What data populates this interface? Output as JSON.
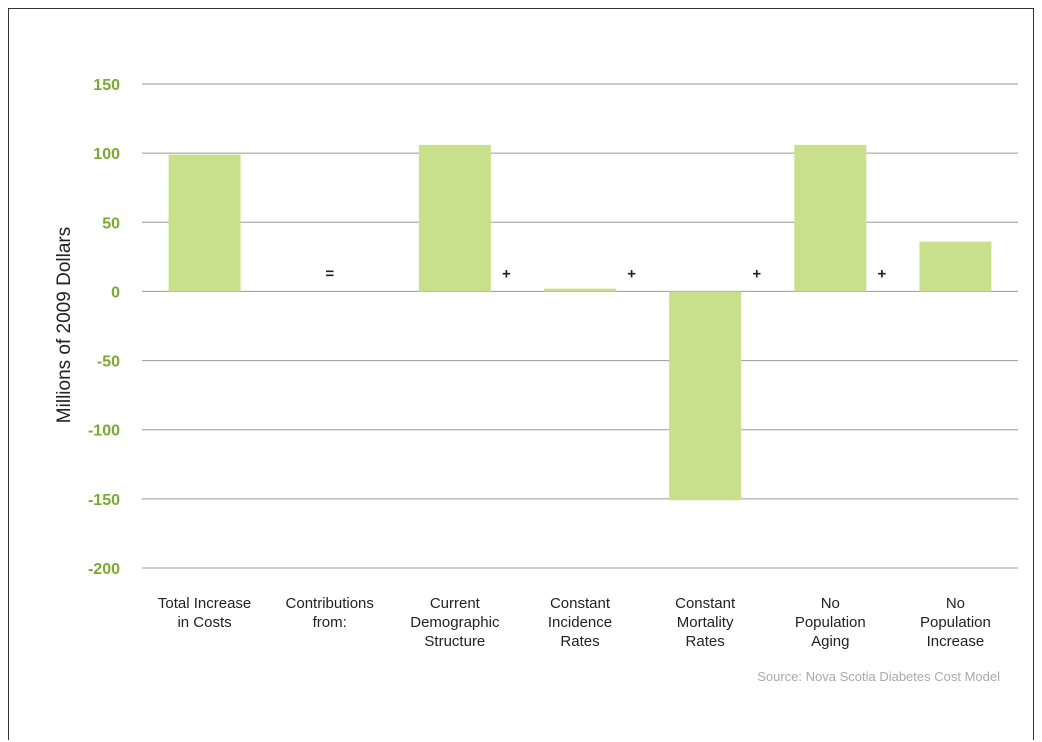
{
  "chart_data": {
    "type": "bar",
    "categories": [
      [
        "Total Increase",
        "in Costs"
      ],
      [
        "Contributions",
        "from:"
      ],
      [
        "Current",
        "Demographic",
        "Structure"
      ],
      [
        "Constant",
        "Incidence",
        "Rates"
      ],
      [
        "Constant",
        "Mortality",
        "Rates"
      ],
      [
        "No",
        "Population",
        "Aging"
      ],
      [
        "No",
        "Population",
        "Increase"
      ]
    ],
    "values": [
      99,
      null,
      106,
      2,
      -151,
      106,
      36
    ],
    "operators": [
      "=",
      "+",
      "+",
      "+",
      "+"
    ],
    "ylabel": "Millions of 2009 Dollars",
    "ylim": [
      -200,
      150
    ],
    "yticks": [
      150,
      100,
      50,
      0,
      -50,
      -100,
      -150,
      -200
    ],
    "grid": true,
    "bar_color": "#c8e08c",
    "tick_color": "#7aaa2e",
    "source": "Source: Nova Scotia Diabetes Cost Model"
  }
}
